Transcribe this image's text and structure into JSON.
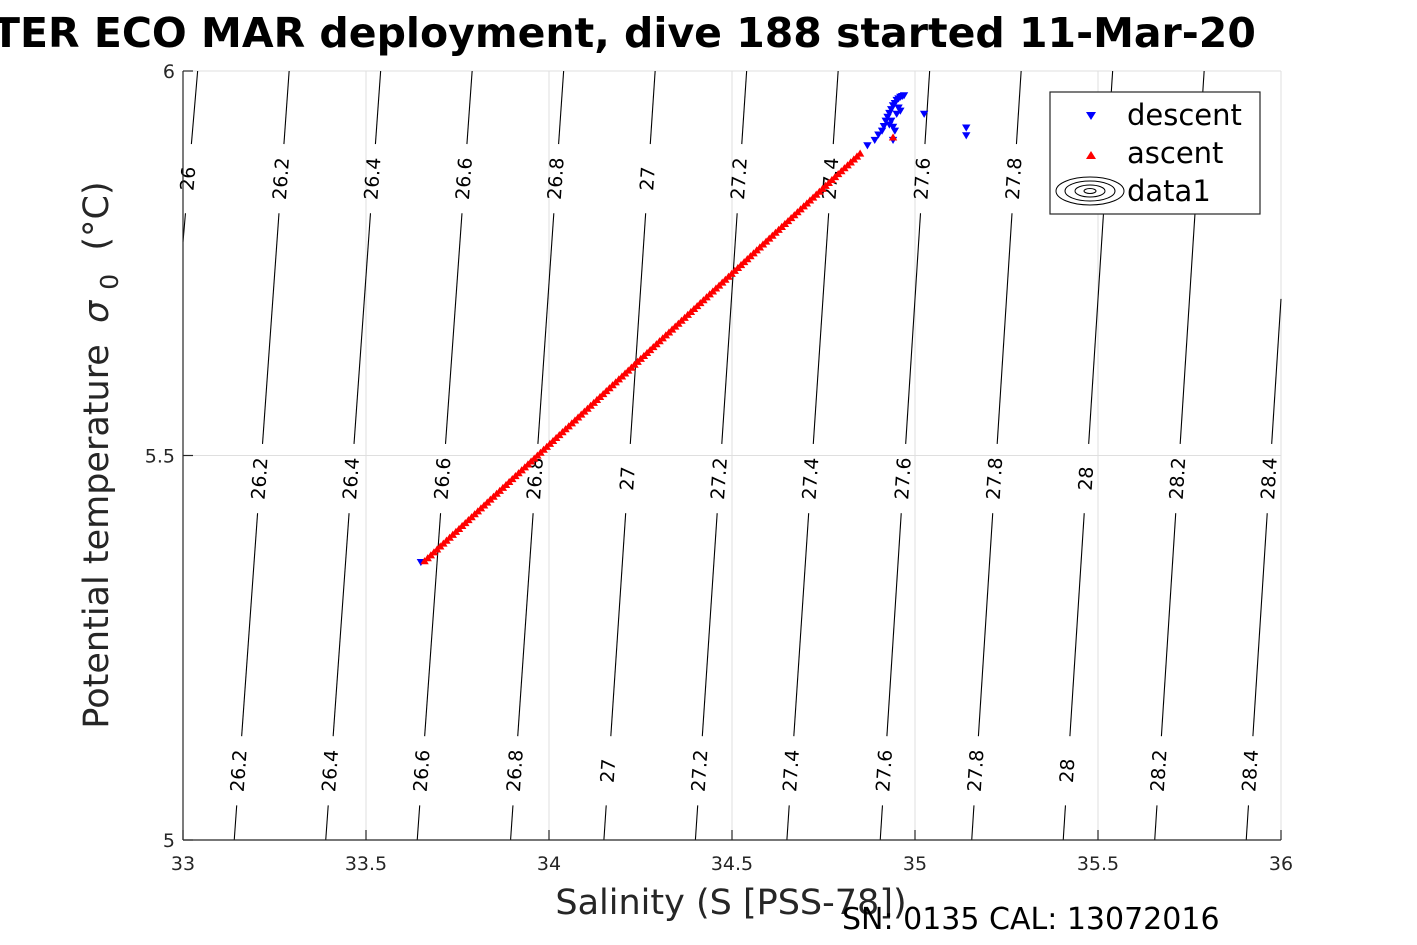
{
  "chart_data": {
    "type": "scatter",
    "title": "TER ECO MAR deployment, dive 188 started 11-Mar-20",
    "xlabel": "Salinity (S [PSS-78])",
    "ylabel_main": "Potential temperature",
    "ylabel_sigma": "σ",
    "ylabel_sub": "0",
    "ylabel_unit": "(°C)",
    "xlim": [
      33,
      36
    ],
    "ylim": [
      5,
      6
    ],
    "xticks": [
      33,
      33.5,
      34,
      34.5,
      35,
      35.5,
      36
    ],
    "xtick_labels": [
      "33",
      "33.5",
      "34",
      "34.5",
      "35",
      "35.5",
      "36"
    ],
    "yticks": [
      5,
      5.5,
      6
    ],
    "ytick_labels": [
      "5",
      "5.5",
      "6"
    ],
    "grid": true,
    "legend_position": "top-right",
    "legend": [
      {
        "label": "descent",
        "marker": "triangle-down",
        "color": "#0000ff"
      },
      {
        "label": "ascent",
        "marker": "triangle-up",
        "color": "#ff0000"
      },
      {
        "label": "data1",
        "marker": "contour",
        "color": "#000000"
      }
    ],
    "series": [
      {
        "name": "descent",
        "marker": "triangle-down",
        "color": "#0000ff",
        "points": [
          [
            33.65,
            5.361
          ],
          [
            34.87,
            5.903
          ],
          [
            34.89,
            5.91
          ],
          [
            34.9,
            5.917
          ],
          [
            34.91,
            5.922
          ],
          [
            34.915,
            5.928
          ],
          [
            34.92,
            5.935
          ],
          [
            34.925,
            5.94
          ],
          [
            34.93,
            5.945
          ],
          [
            34.935,
            5.95
          ],
          [
            34.94,
            5.955
          ],
          [
            34.945,
            5.958
          ],
          [
            34.95,
            5.962
          ],
          [
            34.955,
            5.964
          ],
          [
            34.96,
            5.966
          ],
          [
            34.965,
            5.967
          ],
          [
            34.97,
            5.968
          ],
          [
            34.935,
            5.935
          ],
          [
            34.94,
            5.927
          ],
          [
            34.95,
            5.944
          ],
          [
            34.955,
            5.952
          ],
          [
            34.96,
            5.948
          ],
          [
            34.945,
            5.922
          ],
          [
            34.93,
            5.93
          ],
          [
            34.94,
            5.91
          ],
          [
            35.025,
            5.944
          ],
          [
            35.14,
            5.926
          ],
          [
            35.14,
            5.916
          ]
        ]
      },
      {
        "name": "ascent",
        "marker": "triangle-up",
        "color": "#ff0000",
        "start": [
          33.66,
          5.363
        ],
        "end": [
          34.85,
          5.893
        ],
        "count": 140,
        "extra_points": [
          [
            34.94,
            5.914
          ]
        ]
      }
    ],
    "contours": [
      {
        "label": "26",
        "x_at_top": 33.04,
        "x_at_bottom": 32.86,
        "label_positions": [
          [
            33.01,
            5.86
          ]
        ]
      },
      {
        "label": "26.2",
        "x_at_top": 33.29,
        "x_at_bottom": 33.14,
        "label_positions": [
          [
            33.265,
            5.86
          ],
          [
            33.21,
            5.47
          ],
          [
            33.155,
            5.09
          ]
        ]
      },
      {
        "label": "26.4",
        "x_at_top": 33.54,
        "x_at_bottom": 33.39,
        "label_positions": [
          [
            33.515,
            5.86
          ],
          [
            33.46,
            5.47
          ],
          [
            33.405,
            5.09
          ]
        ]
      },
      {
        "label": "26.6",
        "x_at_top": 33.79,
        "x_at_bottom": 33.64,
        "label_positions": [
          [
            33.765,
            5.86
          ],
          [
            33.71,
            5.47
          ],
          [
            33.655,
            5.09
          ]
        ]
      },
      {
        "label": "26.8",
        "x_at_top": 34.04,
        "x_at_bottom": 33.895,
        "label_positions": [
          [
            34.015,
            5.86
          ],
          [
            33.96,
            5.47
          ],
          [
            33.905,
            5.09
          ]
        ]
      },
      {
        "label": "27",
        "x_at_top": 34.29,
        "x_at_bottom": 34.15,
        "label_positions": [
          [
            34.27,
            5.86
          ],
          [
            34.22,
            5.47
          ],
          [
            34.165,
            5.09
          ]
        ]
      },
      {
        "label": "27.2",
        "x_at_top": 34.54,
        "x_at_bottom": 34.4,
        "label_positions": [
          [
            34.52,
            5.86
          ],
          [
            34.465,
            5.47
          ],
          [
            34.415,
            5.09
          ]
        ]
      },
      {
        "label": "27.4",
        "x_at_top": 34.79,
        "x_at_bottom": 34.65,
        "label_positions": [
          [
            34.77,
            5.86
          ],
          [
            34.715,
            5.47
          ],
          [
            34.665,
            5.09
          ]
        ]
      },
      {
        "label": "27.6",
        "x_at_top": 35.04,
        "x_at_bottom": 34.905,
        "label_positions": [
          [
            35.02,
            5.86
          ],
          [
            34.965,
            5.47
          ],
          [
            34.915,
            5.09
          ]
        ]
      },
      {
        "label": "27.8",
        "x_at_top": 35.29,
        "x_at_bottom": 35.155,
        "label_positions": [
          [
            35.27,
            5.86
          ],
          [
            35.215,
            5.47
          ],
          [
            35.165,
            5.09
          ]
        ]
      },
      {
        "label": "28",
        "x_at_top": 35.54,
        "x_at_bottom": 35.405,
        "label_positions": [
          [
            35.465,
            5.47
          ],
          [
            35.415,
            5.09
          ]
        ]
      },
      {
        "label": "28.2",
        "x_at_top": 35.79,
        "x_at_bottom": 35.655,
        "label_positions": [
          [
            35.715,
            5.47
          ],
          [
            35.665,
            5.09
          ]
        ]
      },
      {
        "label": "28.4",
        "x_at_top": 36.04,
        "x_at_bottom": 35.905,
        "label_positions": [
          [
            35.97,
            5.47
          ],
          [
            35.92,
            5.09
          ]
        ]
      }
    ]
  },
  "footer": {
    "serial": "SN: 0135  CAL: 13072016"
  }
}
